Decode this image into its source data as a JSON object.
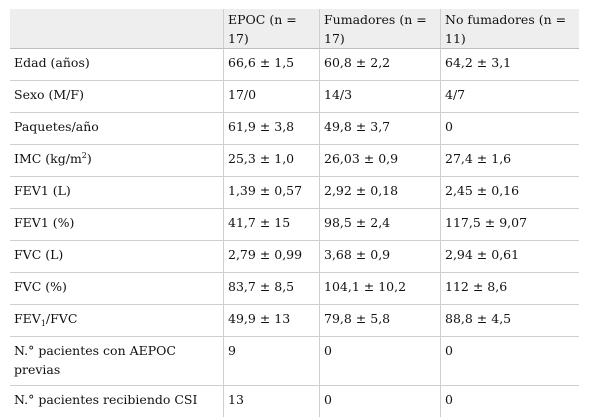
{
  "table": {
    "headers": [
      "",
      "EPOC (n = 17)",
      "Fumadores (n = 17)",
      "No fumadores (n = 11)"
    ],
    "rows": [
      {
        "label": "Edad (años)",
        "values": [
          "66,6 ± 1,5",
          "60,8 ± 2,2",
          "64,2 ± 3,1"
        ]
      },
      {
        "label": "Sexo (M/F)",
        "values": [
          "17/0",
          "14/3",
          "4/7"
        ]
      },
      {
        "label": "Paquetes/año",
        "values": [
          "61,9 ± 3,8",
          "49,8 ± 3,7",
          "0"
        ]
      },
      {
        "label_pre": "IMC (kg/m",
        "label_sup": "2",
        "label_post": ")",
        "values": [
          "25,3 ± 1,0",
          "26,03 ± 0,9",
          "27,4 ± 1,6"
        ]
      },
      {
        "label": "FEV1 (L)",
        "values": [
          "1,39 ± 0,57",
          "2,92 ± 0,18",
          "2,45 ± 0,16"
        ]
      },
      {
        "label": "FEV1 (%)",
        "values": [
          "41,7 ± 15",
          "98,5 ± 2,4",
          "117,5 ± 9,07"
        ]
      },
      {
        "label": "FVC (L)",
        "values": [
          "2,79 ± 0,99",
          "3,68 ± 0,9",
          "2,94 ± 0,61"
        ]
      },
      {
        "label": "FVC (%)",
        "values": [
          "83,7 ± 8,5",
          "104,1 ± 10,2",
          "112 ± 8,6"
        ]
      },
      {
        "label_pre": "FEV",
        "label_sub": "1",
        "label_post": "/FVC",
        "values": [
          "49,9 ± 13",
          "79,8 ± 5,8",
          "88,8 ± 4,5"
        ]
      },
      {
        "label": "N.° pacientes con AEPOC previas",
        "values": [
          "9",
          "0",
          "0"
        ]
      },
      {
        "label": "N.° pacientes recibiendo CSI",
        "values": [
          "13",
          "0",
          "0"
        ]
      }
    ]
  }
}
